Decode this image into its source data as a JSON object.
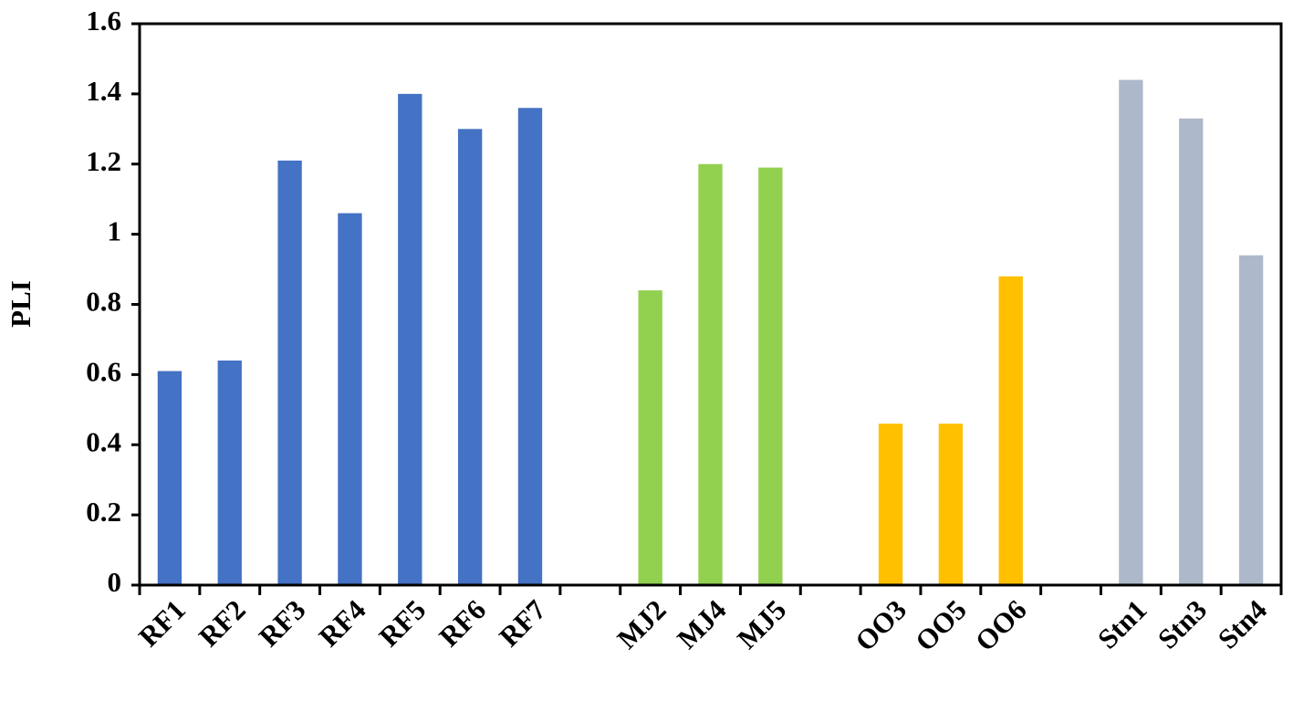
{
  "chart_data": {
    "type": "bar",
    "y_label": "PLI",
    "categories": [
      "RF1",
      "RF2",
      "RF3",
      "RF4",
      "RF5",
      "RF6",
      "RF7",
      null,
      "MJ2",
      "MJ4",
      "MJ5",
      null,
      "OO3",
      "OO5",
      "OO6",
      null,
      "Stn1",
      "Stn3",
      "Stn4"
    ],
    "values": [
      0.61,
      0.64,
      1.21,
      1.06,
      1.4,
      1.3,
      1.36,
      null,
      0.84,
      1.2,
      1.19,
      null,
      0.46,
      0.46,
      0.88,
      null,
      1.44,
      1.33,
      0.94
    ],
    "colors": [
      "#4472c4",
      "#4472c4",
      "#4472c4",
      "#4472c4",
      "#4472c4",
      "#4472c4",
      "#4472c4",
      null,
      "#92d050",
      "#92d050",
      "#92d050",
      null,
      "#ffc000",
      "#ffc000",
      "#ffc000",
      null,
      "#adb9ca",
      "#adb9ca",
      "#adb9ca"
    ],
    "ylim": [
      0,
      1.6
    ],
    "yticks": [
      0,
      0.2,
      0.4,
      0.6,
      0.8,
      1,
      1.2,
      1.4,
      1.6
    ],
    "grid": false
  }
}
